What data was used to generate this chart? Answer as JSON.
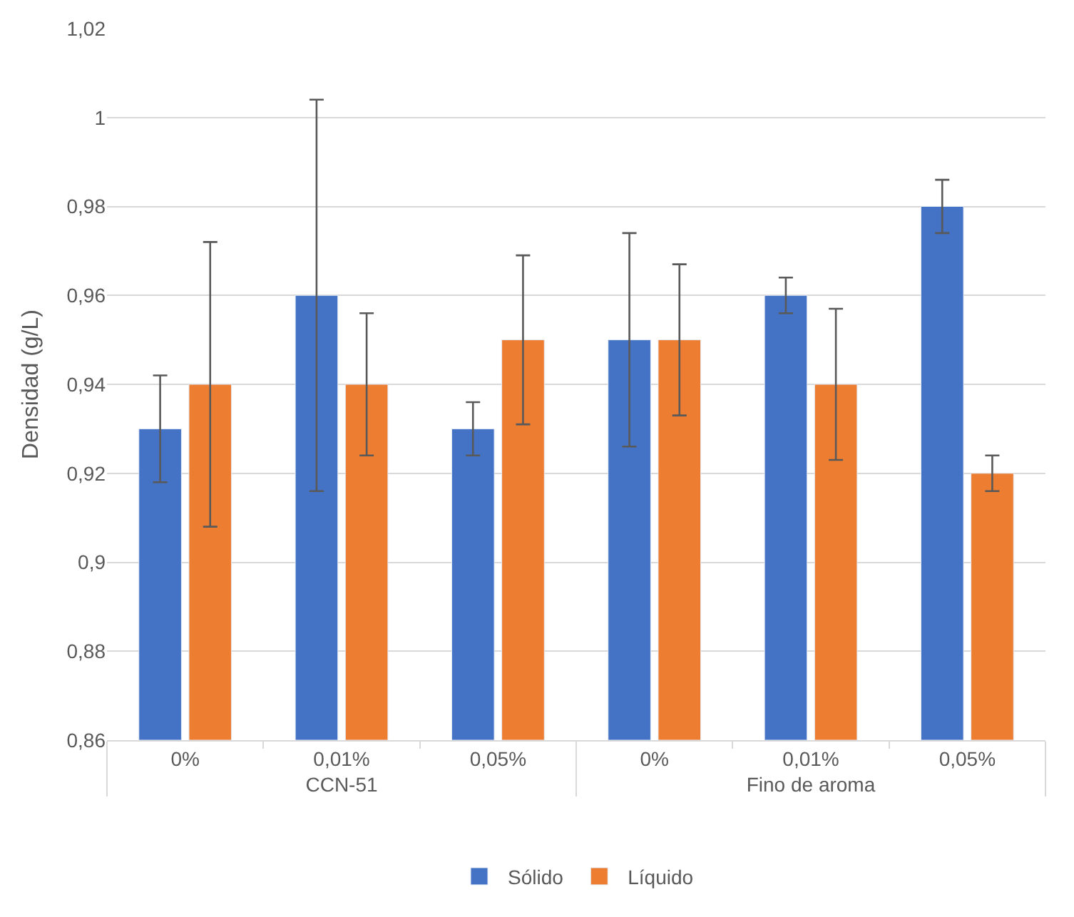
{
  "chart_data": {
    "type": "bar",
    "ylabel": "Densidad (g/L)",
    "categories": [
      "0%",
      "0,01%",
      "0,05%",
      "0%",
      "0,01%",
      "0,05%"
    ],
    "annotations": [
      "CCN-51",
      "Fino de aroma"
    ],
    "series": [
      {
        "name": "Sólido",
        "color": "#4472c4",
        "values": [
          0.93,
          0.96,
          0.93,
          0.95,
          0.96,
          0.98
        ],
        "errors": [
          0.012,
          0.044,
          0.006,
          0.024,
          0.004,
          0.006
        ]
      },
      {
        "name": "Líquido",
        "color": "#ed7d31",
        "values": [
          0.94,
          0.94,
          0.95,
          0.95,
          0.94,
          0.92
        ],
        "errors": [
          0.032,
          0.016,
          0.019,
          0.017,
          0.017,
          0.004
        ]
      }
    ],
    "ylim": [
      0.86,
      1.02
    ],
    "yticks": [
      {
        "value": 0.86,
        "label": "0,86"
      },
      {
        "value": 0.88,
        "label": "0,88"
      },
      {
        "value": 0.9,
        "label": "0,9"
      },
      {
        "value": 0.92,
        "label": "0,92"
      },
      {
        "value": 0.94,
        "label": "0,94"
      },
      {
        "value": 0.96,
        "label": "0,96"
      },
      {
        "value": 0.98,
        "label": "0,98"
      },
      {
        "value": 1.0,
        "label": "1"
      },
      {
        "value": 1.02,
        "label": "1,02"
      }
    ],
    "grid": "y",
    "legend": "bottom"
  }
}
